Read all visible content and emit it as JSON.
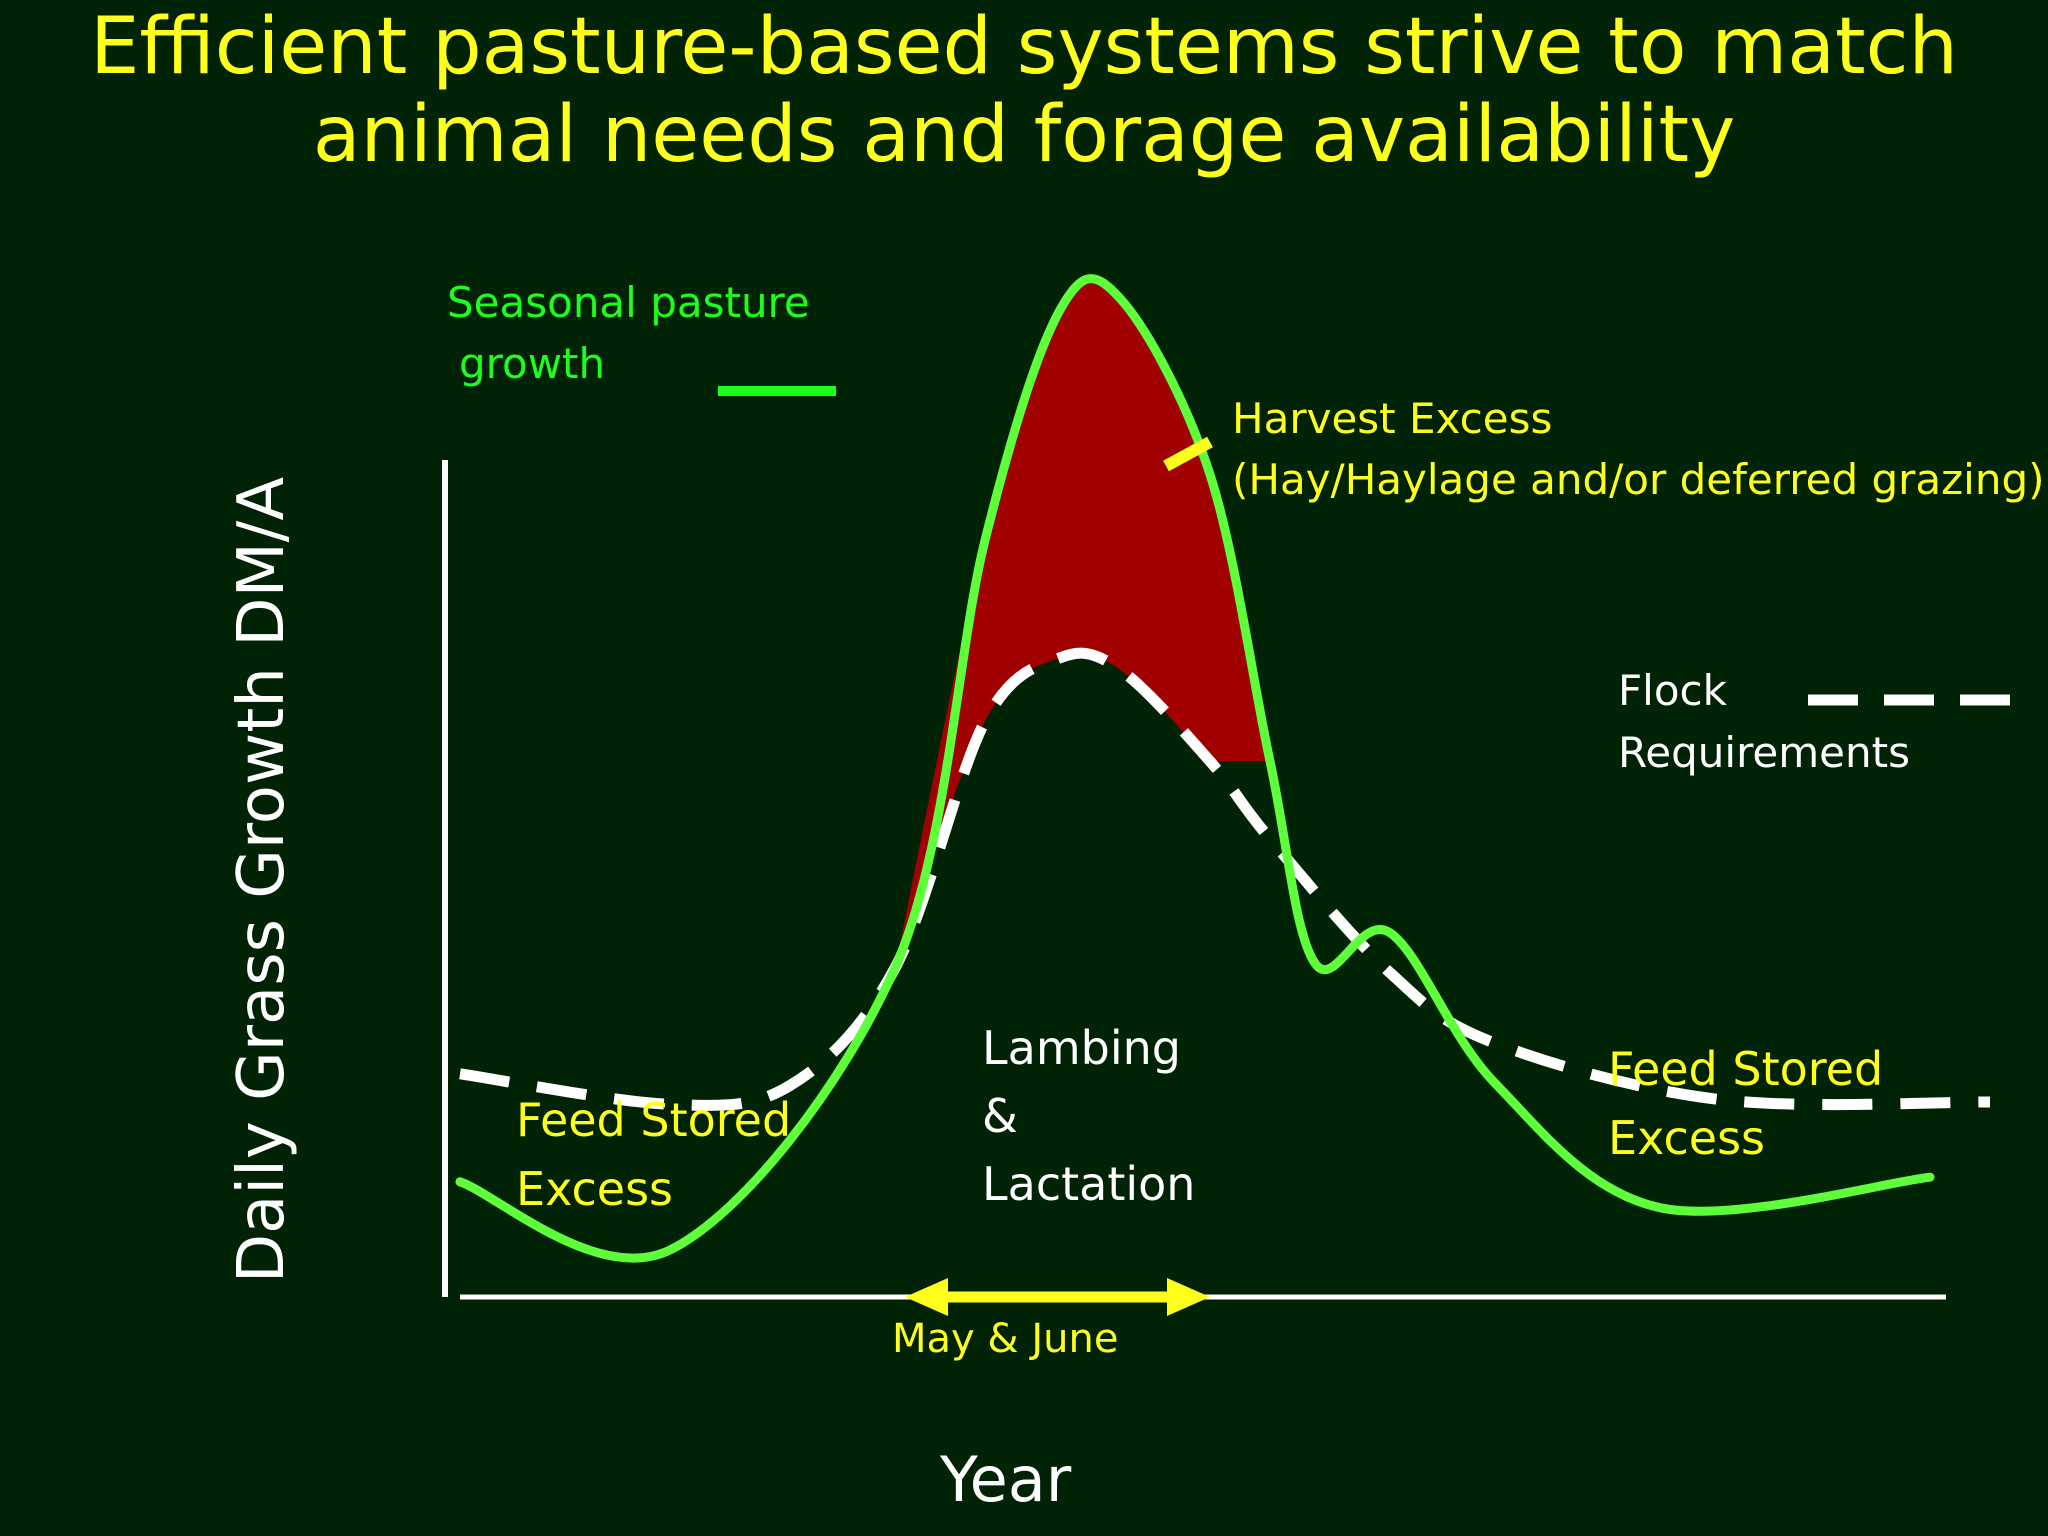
{
  "title": {
    "line1": "Efficient pasture-based systems strive to match",
    "line2": "animal needs and forage availability"
  },
  "colors": {
    "background": "#002306",
    "title": "#ffff1e",
    "pasture": "#5eff3a",
    "flock": "#ffffff",
    "excess_fill": "#a00000",
    "annotation": "#ffff1e",
    "axis": "#ffffff"
  },
  "chart_data": {
    "type": "line",
    "xlabel": "Year",
    "ylabel": "Daily Grass Growth DM/A",
    "axis_ticks": "none",
    "series": [
      {
        "legend": "Seasonal pasture growth",
        "style": "solid",
        "x": [
          0.0,
          0.14,
          0.29,
          0.35,
          0.4,
          0.44,
          0.5,
          0.54,
          0.57,
          0.62,
          0.69,
          0.8,
          0.98
        ],
        "y": [
          0.49,
          0.2,
          1.4,
          3.22,
          4.2,
          4.25,
          3.5,
          2.28,
          1.42,
          1.55,
          0.91,
          0.38,
          0.51
        ]
      },
      {
        "legend": "Flock Requirements",
        "style": "dashed",
        "x": [
          0.0,
          0.14,
          0.22,
          0.29,
          0.35,
          0.4,
          0.44,
          0.5,
          0.54,
          0.62,
          0.69,
          0.84,
          1.02
        ],
        "y": [
          0.95,
          0.82,
          0.9,
          1.4,
          2.45,
          2.72,
          2.67,
          2.28,
          1.95,
          1.38,
          1.08,
          0.84,
          0.83
        ]
      }
    ],
    "shaded_region": {
      "label": "Harvest Excess",
      "between": [
        "Seasonal pasture growth",
        "Flock Requirements"
      ]
    }
  },
  "legend": {
    "pasture_line1": "Seasonal pasture",
    "pasture_line2": "growth",
    "flock_line1": "Flock",
    "flock_line2": "Requirements"
  },
  "annotations": {
    "harvest_line1": "Harvest Excess",
    "harvest_line2": "(Hay/Haylage and/or deferred grazing)",
    "lambing_line1": "Lambing",
    "lambing_line2": "&",
    "lambing_line3": "Lactation",
    "feed_left_line1": "Feed Stored",
    "feed_left_line2": "Excess",
    "feed_right_line1": "Feed Stored",
    "feed_right_line2": "Excess",
    "period": "May & June"
  }
}
